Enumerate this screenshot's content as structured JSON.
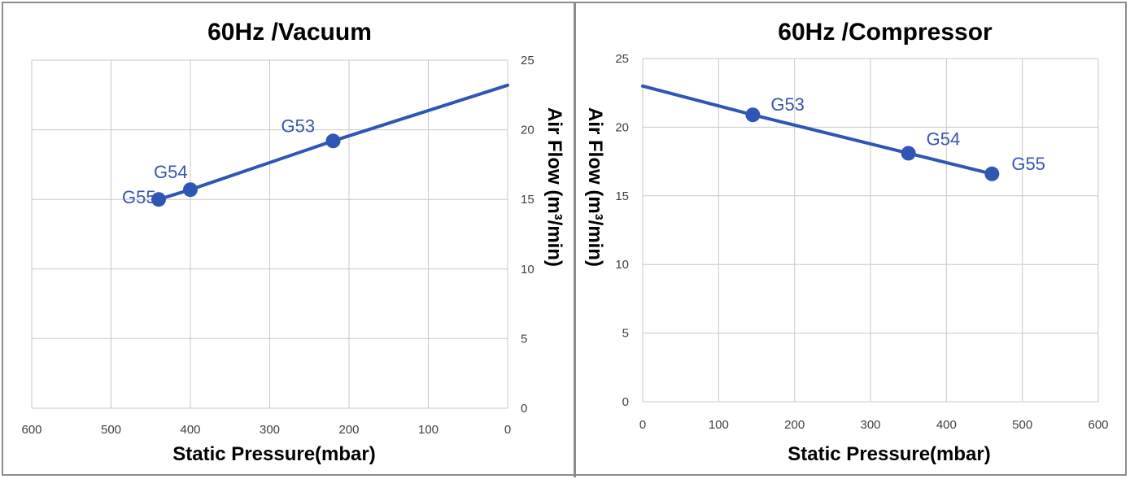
{
  "chart_data": [
    {
      "type": "line",
      "title": "60Hz /Vacuum",
      "xlabel": "Static Pressure(mbar)",
      "ylabel": "Air Flow  (m³/min)",
      "xlim": [
        600,
        0
      ],
      "x_reversed": true,
      "ylim": [
        0,
        25
      ],
      "xticks": [
        600,
        500,
        400,
        300,
        200,
        100,
        0
      ],
      "yticks": [
        0,
        5,
        10,
        15,
        20,
        25
      ],
      "y_axis_side": "right",
      "grid": true,
      "line_color": "#2f55b5",
      "line": {
        "x": [
          440,
          400,
          220,
          0
        ],
        "y": [
          15.0,
          15.7,
          19.2,
          23.2
        ]
      },
      "points": [
        {
          "label": "G55",
          "x": 440,
          "y": 15.0
        },
        {
          "label": "G54",
          "x": 400,
          "y": 15.7
        },
        {
          "label": "G53",
          "x": 220,
          "y": 19.2
        }
      ]
    },
    {
      "type": "line",
      "title": "60Hz /Compressor",
      "xlabel": "Static Pressure(mbar)",
      "ylabel": "Air Flow  (m³/min)",
      "xlim": [
        0,
        600
      ],
      "x_reversed": false,
      "ylim": [
        0,
        25
      ],
      "xticks": [
        0,
        100,
        200,
        300,
        400,
        500,
        600
      ],
      "yticks": [
        0,
        5,
        10,
        15,
        20,
        25
      ],
      "y_axis_side": "left",
      "grid": true,
      "line_color": "#2f55b5",
      "line": {
        "x": [
          0,
          145,
          350,
          460
        ],
        "y": [
          23.0,
          20.9,
          18.1,
          16.6
        ]
      },
      "points": [
        {
          "label": "G53",
          "x": 145,
          "y": 20.9
        },
        {
          "label": "G54",
          "x": 350,
          "y": 18.1
        },
        {
          "label": "G55",
          "x": 460,
          "y": 16.6
        }
      ]
    }
  ]
}
